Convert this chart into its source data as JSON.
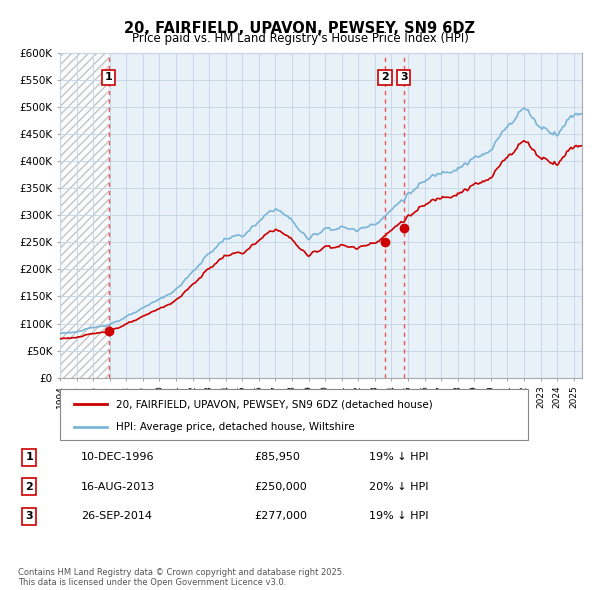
{
  "title": "20, FAIRFIELD, UPAVON, PEWSEY, SN9 6DZ",
  "subtitle": "Price paid vs. HM Land Registry's House Price Index (HPI)",
  "legend_entry1": "20, FAIRFIELD, UPAVON, PEWSEY, SN9 6DZ (detached house)",
  "legend_entry2": "HPI: Average price, detached house, Wiltshire",
  "footer": "Contains HM Land Registry data © Crown copyright and database right 2025.\nThis data is licensed under the Open Government Licence v3.0.",
  "sale_dates": [
    1996.94,
    2013.62,
    2014.74
  ],
  "sale_prices": [
    85950,
    250000,
    277000
  ],
  "sale_labels": [
    "1",
    "2",
    "3"
  ],
  "table_rows": [
    [
      "1",
      "10-DEC-1996",
      "£85,950",
      "19% ↓ HPI"
    ],
    [
      "2",
      "16-AUG-2013",
      "£250,000",
      "20% ↓ HPI"
    ],
    [
      "3",
      "26-SEP-2014",
      "£277,000",
      "19% ↓ HPI"
    ]
  ],
  "hpi_color": "#7ab5d8",
  "sale_color": "#cc0000",
  "dashed_line_color": "#ee4444",
  "chart_bg": "#e8f0f8",
  "background_color": "#ffffff",
  "grid_color": "#c8d8e8",
  "ylim": [
    0,
    600000
  ],
  "yticks": [
    0,
    50000,
    100000,
    150000,
    200000,
    250000,
    300000,
    350000,
    400000,
    450000,
    500000,
    550000,
    600000
  ],
  "xmin": 1994.0,
  "xmax": 2025.5,
  "hpi_annual": [
    [
      1994,
      82000
    ],
    [
      1995,
      85000
    ],
    [
      1996,
      91000
    ],
    [
      1997,
      100000
    ],
    [
      1998,
      112000
    ],
    [
      1999,
      126000
    ],
    [
      2000,
      145000
    ],
    [
      2001,
      163000
    ],
    [
      2002,
      195000
    ],
    [
      2003,
      230000
    ],
    [
      2004,
      258000
    ],
    [
      2005,
      262000
    ],
    [
      2006,
      285000
    ],
    [
      2007,
      315000
    ],
    [
      2008,
      290000
    ],
    [
      2009,
      255000
    ],
    [
      2010,
      278000
    ],
    [
      2011,
      278000
    ],
    [
      2012,
      272000
    ],
    [
      2013,
      288000
    ],
    [
      2014,
      310000
    ],
    [
      2015,
      340000
    ],
    [
      2016,
      360000
    ],
    [
      2017,
      380000
    ],
    [
      2018,
      395000
    ],
    [
      2019,
      405000
    ],
    [
      2020,
      415000
    ],
    [
      2021,
      470000
    ],
    [
      2022,
      500000
    ],
    [
      2023,
      465000
    ],
    [
      2024,
      455000
    ],
    [
      2025,
      490000
    ]
  ]
}
